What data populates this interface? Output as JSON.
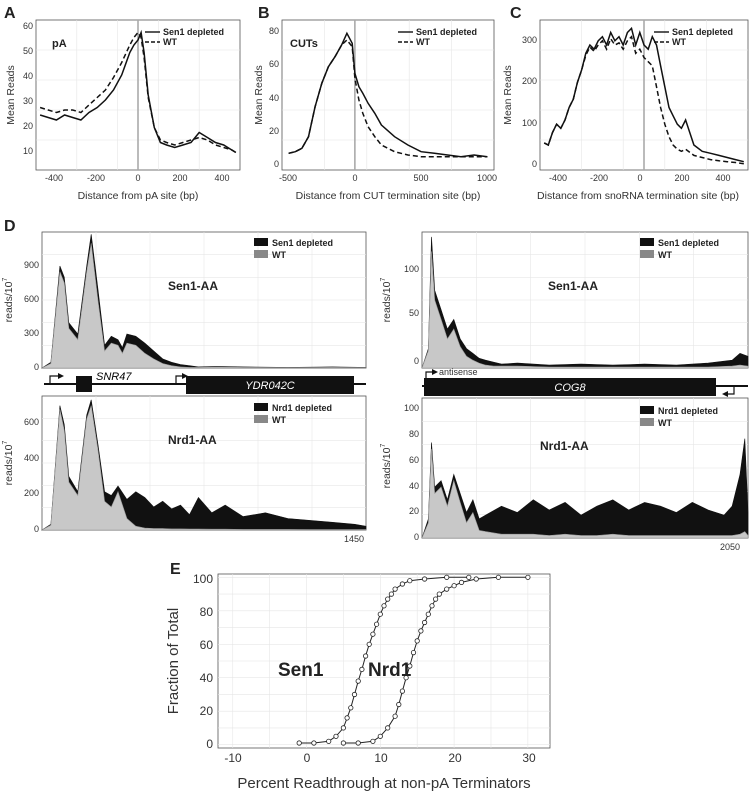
{
  "panels": {
    "A": {
      "label": "A",
      "title": "pA",
      "xlabel": "Distance from pA site (bp)",
      "ylabel": "Mean Reads",
      "legend": [
        "Sen1 depleted",
        "WT"
      ],
      "xticks": [
        "-400",
        "-200",
        "0",
        "200",
        "400"
      ],
      "yticks": [
        "10",
        "20",
        "30",
        "40",
        "50",
        "60"
      ]
    },
    "B": {
      "label": "B",
      "title": "CUTs",
      "xlabel": "Distance from CUT termination site (bp)",
      "ylabel": "Mean Reads",
      "legend": [
        "Sen1 depleted",
        "WT"
      ],
      "xticks": [
        "-500",
        "0",
        "500",
        "1000"
      ],
      "yticks": [
        "0",
        "20",
        "40",
        "60",
        "80"
      ]
    },
    "C": {
      "label": "C",
      "title": "",
      "xlabel": "Distance from snoRNA termination site (bp)",
      "ylabel": "Mean Reads",
      "legend": [
        "Sen1 depleted",
        "WT"
      ],
      "xticks": [
        "-400",
        "-200",
        "0",
        "200",
        "400"
      ],
      "yticks": [
        "0",
        "100",
        "200",
        "300"
      ]
    },
    "D": {
      "label": "D",
      "left": {
        "top_track": "Sen1-AA",
        "top_legend": [
          "Sen1 depleted",
          "WT"
        ],
        "top_yticks": [
          "0",
          "300",
          "600",
          "900"
        ],
        "bottom_track": "Nrd1-AA",
        "bottom_legend": [
          "Nrd1 depleted",
          "WT"
        ],
        "bottom_yticks": [
          "0",
          "200",
          "400",
          "600"
        ],
        "ylabel": "reads/10",
        "ylabel_sup": "7",
        "genes": [
          "SNR47",
          "YDR042C"
        ],
        "xend": "1450"
      },
      "right": {
        "top_track": "Sen1-AA",
        "top_legend": [
          "Sen1 depleted",
          "WT"
        ],
        "top_yticks": [
          "0",
          "50",
          "100"
        ],
        "bottom_track": "Nrd1-AA",
        "bottom_legend": [
          "Nrd1 depleted",
          "WT"
        ],
        "bottom_yticks": [
          "0",
          "20",
          "40",
          "60",
          "80",
          "100"
        ],
        "ylabel": "reads/10",
        "ylabel_sup": "7",
        "genes": [
          "COG8"
        ],
        "annotation": "antisense",
        "xend": "2050"
      }
    },
    "E": {
      "label": "E",
      "xlabel": "Percent Readthrough at non-pA Terminators",
      "ylabel": "Fraction of Total",
      "xticks": [
        "-10",
        "0",
        "10",
        "20",
        "30"
      ],
      "yticks": [
        "0",
        "20",
        "40",
        "60",
        "80",
        "100"
      ],
      "series_labels": [
        "Sen1",
        "Nrd1"
      ]
    }
  },
  "colors": {
    "depleted": "#111111",
    "wt_fill": "#c8c8c8",
    "wt_legend": "#888888",
    "zero_line": "#aaaaaa",
    "grid": "#e6e6e6"
  },
  "chart_data": [
    {
      "type": "line",
      "panel": "A",
      "xlim": [
        -500,
        500
      ],
      "ylim": [
        5,
        65
      ],
      "series": [
        {
          "name": "Sen1 depleted",
          "style": "solid",
          "x": [
            -480,
            -440,
            -400,
            -360,
            -320,
            -280,
            -240,
            -200,
            -160,
            -120,
            -80,
            -40,
            -20,
            0,
            15,
            30,
            50,
            80,
            110,
            140,
            180,
            220,
            260,
            300,
            340,
            380,
            420,
            460,
            480
          ],
          "y": [
            27,
            26,
            25,
            27,
            26,
            25,
            28,
            30,
            33,
            37,
            43,
            52,
            55,
            57,
            60,
            52,
            35,
            22,
            16,
            15,
            14,
            15,
            16,
            20,
            18,
            16,
            15,
            13,
            12
          ]
        },
        {
          "name": "WT",
          "style": "dashed",
          "x": [
            -480,
            -440,
            -400,
            -360,
            -320,
            -280,
            -240,
            -200,
            -160,
            -120,
            -80,
            -40,
            -20,
            0,
            15,
            30,
            50,
            80,
            110,
            140,
            180,
            220,
            260,
            300,
            340,
            380,
            420,
            460,
            480
          ],
          "y": [
            30,
            29,
            28,
            29,
            29,
            28,
            31,
            34,
            37,
            42,
            48,
            55,
            58,
            60,
            58,
            50,
            34,
            22,
            17,
            16,
            15,
            16,
            17,
            18,
            17,
            15,
            14,
            13,
            12
          ]
        }
      ]
    },
    {
      "type": "line",
      "panel": "B",
      "xlim": [
        -550,
        1050
      ],
      "ylim": [
        0,
        90
      ],
      "series": [
        {
          "name": "Sen1 depleted",
          "style": "solid",
          "x": [
            -500,
            -450,
            -400,
            -350,
            -300,
            -250,
            -200,
            -150,
            -100,
            -60,
            -20,
            0,
            30,
            60,
            100,
            150,
            200,
            300,
            400,
            500,
            600,
            700,
            800,
            900,
            1000
          ],
          "y": [
            10,
            11,
            13,
            20,
            38,
            52,
            62,
            68,
            75,
            82,
            76,
            58,
            50,
            46,
            40,
            34,
            27,
            20,
            15,
            11,
            10,
            9,
            8,
            9,
            8
          ]
        },
        {
          "name": "WT",
          "style": "dashed",
          "x": [
            -500,
            -450,
            -400,
            -350,
            -300,
            -250,
            -200,
            -150,
            -100,
            -60,
            -20,
            0,
            30,
            60,
            100,
            150,
            200,
            300,
            400,
            500,
            600,
            700,
            800,
            900,
            1000
          ],
          "y": [
            10,
            11,
            13,
            20,
            38,
            52,
            62,
            68,
            75,
            78,
            74,
            55,
            42,
            34,
            26,
            20,
            15,
            11,
            9,
            8,
            8,
            8,
            8,
            8,
            8
          ]
        }
      ]
    },
    {
      "type": "line",
      "panel": "C",
      "xlim": [
        -500,
        500
      ],
      "ylim": [
        0,
        360
      ],
      "series": [
        {
          "name": "Sen1 depleted",
          "style": "solid",
          "x": [
            -480,
            -460,
            -440,
            -420,
            -400,
            -380,
            -360,
            -340,
            -320,
            -300,
            -280,
            -260,
            -240,
            -220,
            -200,
            -180,
            -160,
            -140,
            -120,
            -100,
            -80,
            -60,
            -40,
            -20,
            0,
            20,
            40,
            60,
            80,
            100,
            120,
            140,
            160,
            180,
            200,
            240,
            280,
            320,
            360,
            400,
            440,
            480
          ],
          "y": [
            65,
            60,
            90,
            110,
            100,
            120,
            150,
            170,
            210,
            240,
            280,
            300,
            290,
            310,
            320,
            300,
            330,
            310,
            320,
            300,
            330,
            340,
            300,
            330,
            300,
            290,
            320,
            300,
            250,
            200,
            150,
            130,
            110,
            100,
            120,
            60,
            45,
            40,
            35,
            30,
            25,
            20
          ]
        },
        {
          "name": "WT",
          "style": "dashed",
          "x": [
            -480,
            -460,
            -440,
            -420,
            -400,
            -380,
            -360,
            -340,
            -320,
            -300,
            -280,
            -260,
            -240,
            -220,
            -200,
            -180,
            -160,
            -140,
            -120,
            -100,
            -80,
            -60,
            -40,
            -20,
            0,
            20,
            40,
            60,
            80,
            100,
            120,
            140,
            160,
            180,
            200,
            240,
            280,
            320,
            360,
            400,
            440,
            480
          ],
          "y": [
            65,
            60,
            90,
            110,
            100,
            120,
            150,
            170,
            210,
            240,
            275,
            295,
            285,
            300,
            310,
            290,
            315,
            300,
            305,
            290,
            310,
            320,
            280,
            290,
            270,
            260,
            250,
            200,
            150,
            110,
            80,
            60,
            50,
            45,
            50,
            35,
            30,
            25,
            22,
            20,
            18,
            15
          ]
        }
      ]
    },
    {
      "type": "area",
      "panel": "D-left-Sen1",
      "xlim": [
        0,
        1450
      ],
      "ylim": [
        0,
        1200
      ],
      "x": [
        0,
        40,
        80,
        100,
        120,
        160,
        200,
        220,
        250,
        280,
        310,
        340,
        360,
        380,
        420,
        460,
        500,
        540,
        580,
        620,
        660,
        700,
        780,
        900,
        1100,
        1300,
        1450
      ],
      "series": [
        {
          "name": "Sen1 depleted",
          "values": [
            0,
            50,
            900,
            800,
            400,
            300,
            900,
            1180,
            700,
            200,
            280,
            250,
            180,
            300,
            280,
            220,
            150,
            80,
            50,
            30,
            20,
            10,
            15,
            10,
            5,
            10,
            5
          ]
        },
        {
          "name": "WT",
          "values": [
            0,
            40,
            850,
            750,
            350,
            250,
            850,
            1100,
            600,
            150,
            220,
            200,
            130,
            220,
            200,
            130,
            80,
            40,
            20,
            10,
            5,
            5,
            10,
            5,
            3,
            5,
            3
          ]
        }
      ]
    },
    {
      "type": "area",
      "panel": "D-left-Nrd1",
      "xlim": [
        0,
        1450
      ],
      "ylim": [
        0,
        700
      ],
      "x": [
        0,
        40,
        80,
        100,
        120,
        160,
        200,
        220,
        250,
        280,
        310,
        340,
        380,
        420,
        460,
        500,
        540,
        580,
        620,
        660,
        700,
        760,
        820,
        900,
        1000,
        1100,
        1200,
        1300,
        1400,
        1450
      ],
      "series": [
        {
          "name": "Nrd1 depleted",
          "values": [
            0,
            30,
            650,
            550,
            280,
            200,
            600,
            680,
            450,
            200,
            180,
            230,
            160,
            200,
            170,
            120,
            150,
            110,
            130,
            80,
            170,
            90,
            130,
            70,
            90,
            60,
            50,
            40,
            30,
            20
          ]
        },
        {
          "name": "WT",
          "values": [
            0,
            25,
            630,
            520,
            250,
            180,
            580,
            650,
            420,
            150,
            120,
            200,
            60,
            20,
            10,
            8,
            8,
            6,
            6,
            5,
            5,
            4,
            4,
            3,
            3,
            3,
            2,
            2,
            2,
            2
          ]
        }
      ]
    },
    {
      "type": "area",
      "panel": "D-right-Sen1",
      "xlim": [
        0,
        2050
      ],
      "ylim": [
        0,
        140
      ],
      "x": [
        0,
        40,
        60,
        80,
        120,
        160,
        200,
        240,
        280,
        320,
        360,
        400,
        450,
        500,
        600,
        800,
        1000,
        1200,
        1400,
        1600,
        1800,
        1950,
        2000,
        2050
      ],
      "series": [
        {
          "name": "Sen1 depleted",
          "values": [
            0,
            20,
            135,
            80,
            60,
            40,
            50,
            30,
            20,
            15,
            10,
            8,
            6,
            4,
            5,
            3,
            4,
            3,
            4,
            3,
            5,
            8,
            15,
            12
          ]
        },
        {
          "name": "WT",
          "values": [
            0,
            18,
            120,
            70,
            50,
            30,
            40,
            22,
            12,
            8,
            5,
            3,
            2,
            2,
            2,
            1,
            1,
            1,
            1,
            1,
            1,
            2,
            3,
            2
          ]
        }
      ]
    },
    {
      "type": "area",
      "panel": "D-right-Nrd1",
      "xlim": [
        0,
        2050
      ],
      "ylim": [
        0,
        110
      ],
      "x": [
        0,
        40,
        60,
        80,
        120,
        160,
        200,
        240,
        280,
        320,
        360,
        400,
        500,
        600,
        700,
        800,
        900,
        1000,
        1100,
        1200,
        1300,
        1400,
        1500,
        1600,
        1700,
        1800,
        1900,
        1950,
        2000,
        2030,
        2050
      ],
      "series": [
        {
          "name": "Nrd1 depleted",
          "values": [
            0,
            15,
            75,
            40,
            45,
            30,
            50,
            35,
            20,
            30,
            15,
            18,
            25,
            20,
            30,
            22,
            28,
            18,
            25,
            30,
            22,
            28,
            25,
            20,
            28,
            22,
            18,
            25,
            50,
            78,
            20
          ]
        },
        {
          "name": "WT",
          "values": [
            0,
            12,
            70,
            35,
            40,
            25,
            45,
            28,
            12,
            20,
            6,
            5,
            3,
            3,
            3,
            2,
            3,
            2,
            2,
            3,
            2,
            2,
            2,
            2,
            2,
            2,
            2,
            2,
            3,
            5,
            2
          ]
        }
      ]
    },
    {
      "type": "scatter",
      "panel": "E",
      "xlim": [
        -12,
        33
      ],
      "ylim": [
        -2,
        102
      ],
      "series": [
        {
          "name": "Sen1",
          "x": [
            -1,
            1,
            3,
            4,
            5,
            5.5,
            6,
            6.5,
            7,
            7.5,
            8,
            8.5,
            9,
            9.5,
            10,
            10.5,
            11,
            11.5,
            12,
            13,
            14,
            16,
            19,
            22
          ],
          "y": [
            1,
            1,
            2,
            5,
            10,
            16,
            22,
            30,
            38,
            45,
            53,
            60,
            66,
            72,
            78,
            83,
            87,
            90,
            93,
            96,
            98,
            99,
            100,
            100
          ]
        },
        {
          "name": "Nrd1",
          "x": [
            5,
            7,
            9,
            10,
            11,
            12,
            12.5,
            13,
            13.5,
            14,
            14.5,
            15,
            15.5,
            16,
            16.5,
            17,
            17.5,
            18,
            19,
            20,
            21,
            23,
            26,
            30
          ],
          "y": [
            1,
            1,
            2,
            5,
            10,
            17,
            24,
            32,
            40,
            47,
            55,
            62,
            68,
            73,
            78,
            83,
            87,
            90,
            93,
            95,
            97,
            99,
            100,
            100
          ]
        }
      ]
    }
  ]
}
